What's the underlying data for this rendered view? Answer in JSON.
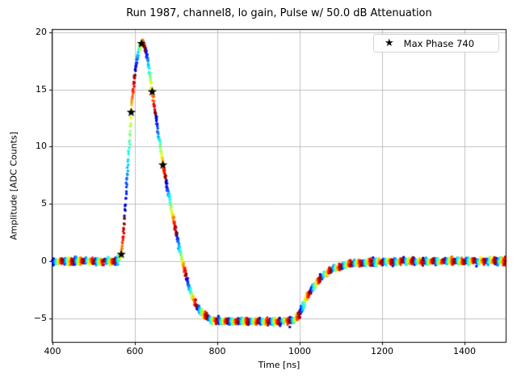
{
  "chart_data": {
    "type": "scatter",
    "title": "Run 1987, channel8, lo gain, Pulse w/ 50.0 dB Attenuation",
    "xlabel": "Time [ns]",
    "ylabel": "Amplitude [ADC Counts]",
    "xlim": [
      400,
      1500
    ],
    "ylim": [
      -7.05,
      20.2
    ],
    "xticks": [
      {
        "value": 400,
        "label": "400"
      },
      {
        "value": 600,
        "label": "600"
      },
      {
        "value": 800,
        "label": "800"
      },
      {
        "value": 1000,
        "label": "1000"
      },
      {
        "value": 1200,
        "label": "1200"
      },
      {
        "value": 1400,
        "label": "1400"
      }
    ],
    "yticks": [
      {
        "value": -5,
        "label": "−5"
      },
      {
        "value": 0,
        "label": "0"
      },
      {
        "value": 5,
        "label": "5"
      },
      {
        "value": 10,
        "label": "10"
      },
      {
        "value": 15,
        "label": "15"
      },
      {
        "value": 20,
        "label": "20"
      }
    ],
    "grid": true,
    "grid_color": "#b0b0b0",
    "spine_color": "#000000",
    "colormap": "jet",
    "sampling_period_ns": 25,
    "n_events": 60,
    "noise_sigma_counts": 0.15,
    "marker_radius_px": 1.7,
    "waveform_anchors": [
      [
        400,
        0
      ],
      [
        557,
        0
      ],
      [
        561,
        0.25
      ],
      [
        565,
        0.45
      ],
      [
        567,
        0.6
      ],
      [
        570,
        1.5
      ],
      [
        573,
        2.7
      ],
      [
        576,
        4.2
      ],
      [
        579,
        6.0
      ],
      [
        582,
        7.8
      ],
      [
        585,
        9.6
      ],
      [
        588,
        11.3
      ],
      [
        591,
        13.0
      ],
      [
        594,
        14.2
      ],
      [
        597,
        15.3
      ],
      [
        600,
        16.3
      ],
      [
        603,
        17.1
      ],
      [
        606,
        17.8
      ],
      [
        609,
        18.35
      ],
      [
        612,
        18.7
      ],
      [
        615,
        18.95
      ],
      [
        618,
        19.05
      ],
      [
        622,
        19.0
      ],
      [
        626,
        18.5
      ],
      [
        630,
        17.8
      ],
      [
        634,
        16.9
      ],
      [
        638,
        15.9
      ],
      [
        642,
        14.8
      ],
      [
        647,
        13.5
      ],
      [
        652,
        12.3
      ],
      [
        657,
        11.1
      ],
      [
        662,
        10.0
      ],
      [
        668,
        8.5
      ],
      [
        674,
        7.3
      ],
      [
        680,
        6.2
      ],
      [
        687,
        4.9
      ],
      [
        694,
        3.6
      ],
      [
        701,
        2.4
      ],
      [
        708,
        1.2
      ],
      [
        715,
        0.05
      ],
      [
        722,
        -1.0
      ],
      [
        729,
        -1.95
      ],
      [
        737,
        -2.85
      ],
      [
        745,
        -3.55
      ],
      [
        754,
        -4.15
      ],
      [
        764,
        -4.6
      ],
      [
        776,
        -4.95
      ],
      [
        790,
        -5.1
      ],
      [
        810,
        -5.2
      ],
      [
        850,
        -5.25
      ],
      [
        900,
        -5.28
      ],
      [
        950,
        -5.25
      ],
      [
        985,
        -5.15
      ],
      [
        993,
        -4.95
      ],
      [
        1000,
        -4.55
      ],
      [
        1008,
        -3.95
      ],
      [
        1016,
        -3.3
      ],
      [
        1025,
        -2.7
      ],
      [
        1035,
        -2.1
      ],
      [
        1047,
        -1.6
      ],
      [
        1060,
        -1.15
      ],
      [
        1075,
        -0.8
      ],
      [
        1092,
        -0.52
      ],
      [
        1110,
        -0.33
      ],
      [
        1130,
        -0.2
      ],
      [
        1155,
        -0.1
      ],
      [
        1185,
        -0.04
      ],
      [
        1230,
        0
      ],
      [
        1500,
        0
      ]
    ],
    "outliers": [
      [
        976,
        -5.75
      ]
    ],
    "max_phase_samples": [
      [
        567,
        0.6
      ],
      [
        591,
        13.0
      ],
      [
        616,
        19.0
      ],
      [
        642,
        14.8
      ],
      [
        668,
        8.4
      ]
    ],
    "legend": {
      "label": "Max Phase 740",
      "marker_glyph": "★",
      "marker_color": "#000000",
      "position": "upper right"
    }
  }
}
